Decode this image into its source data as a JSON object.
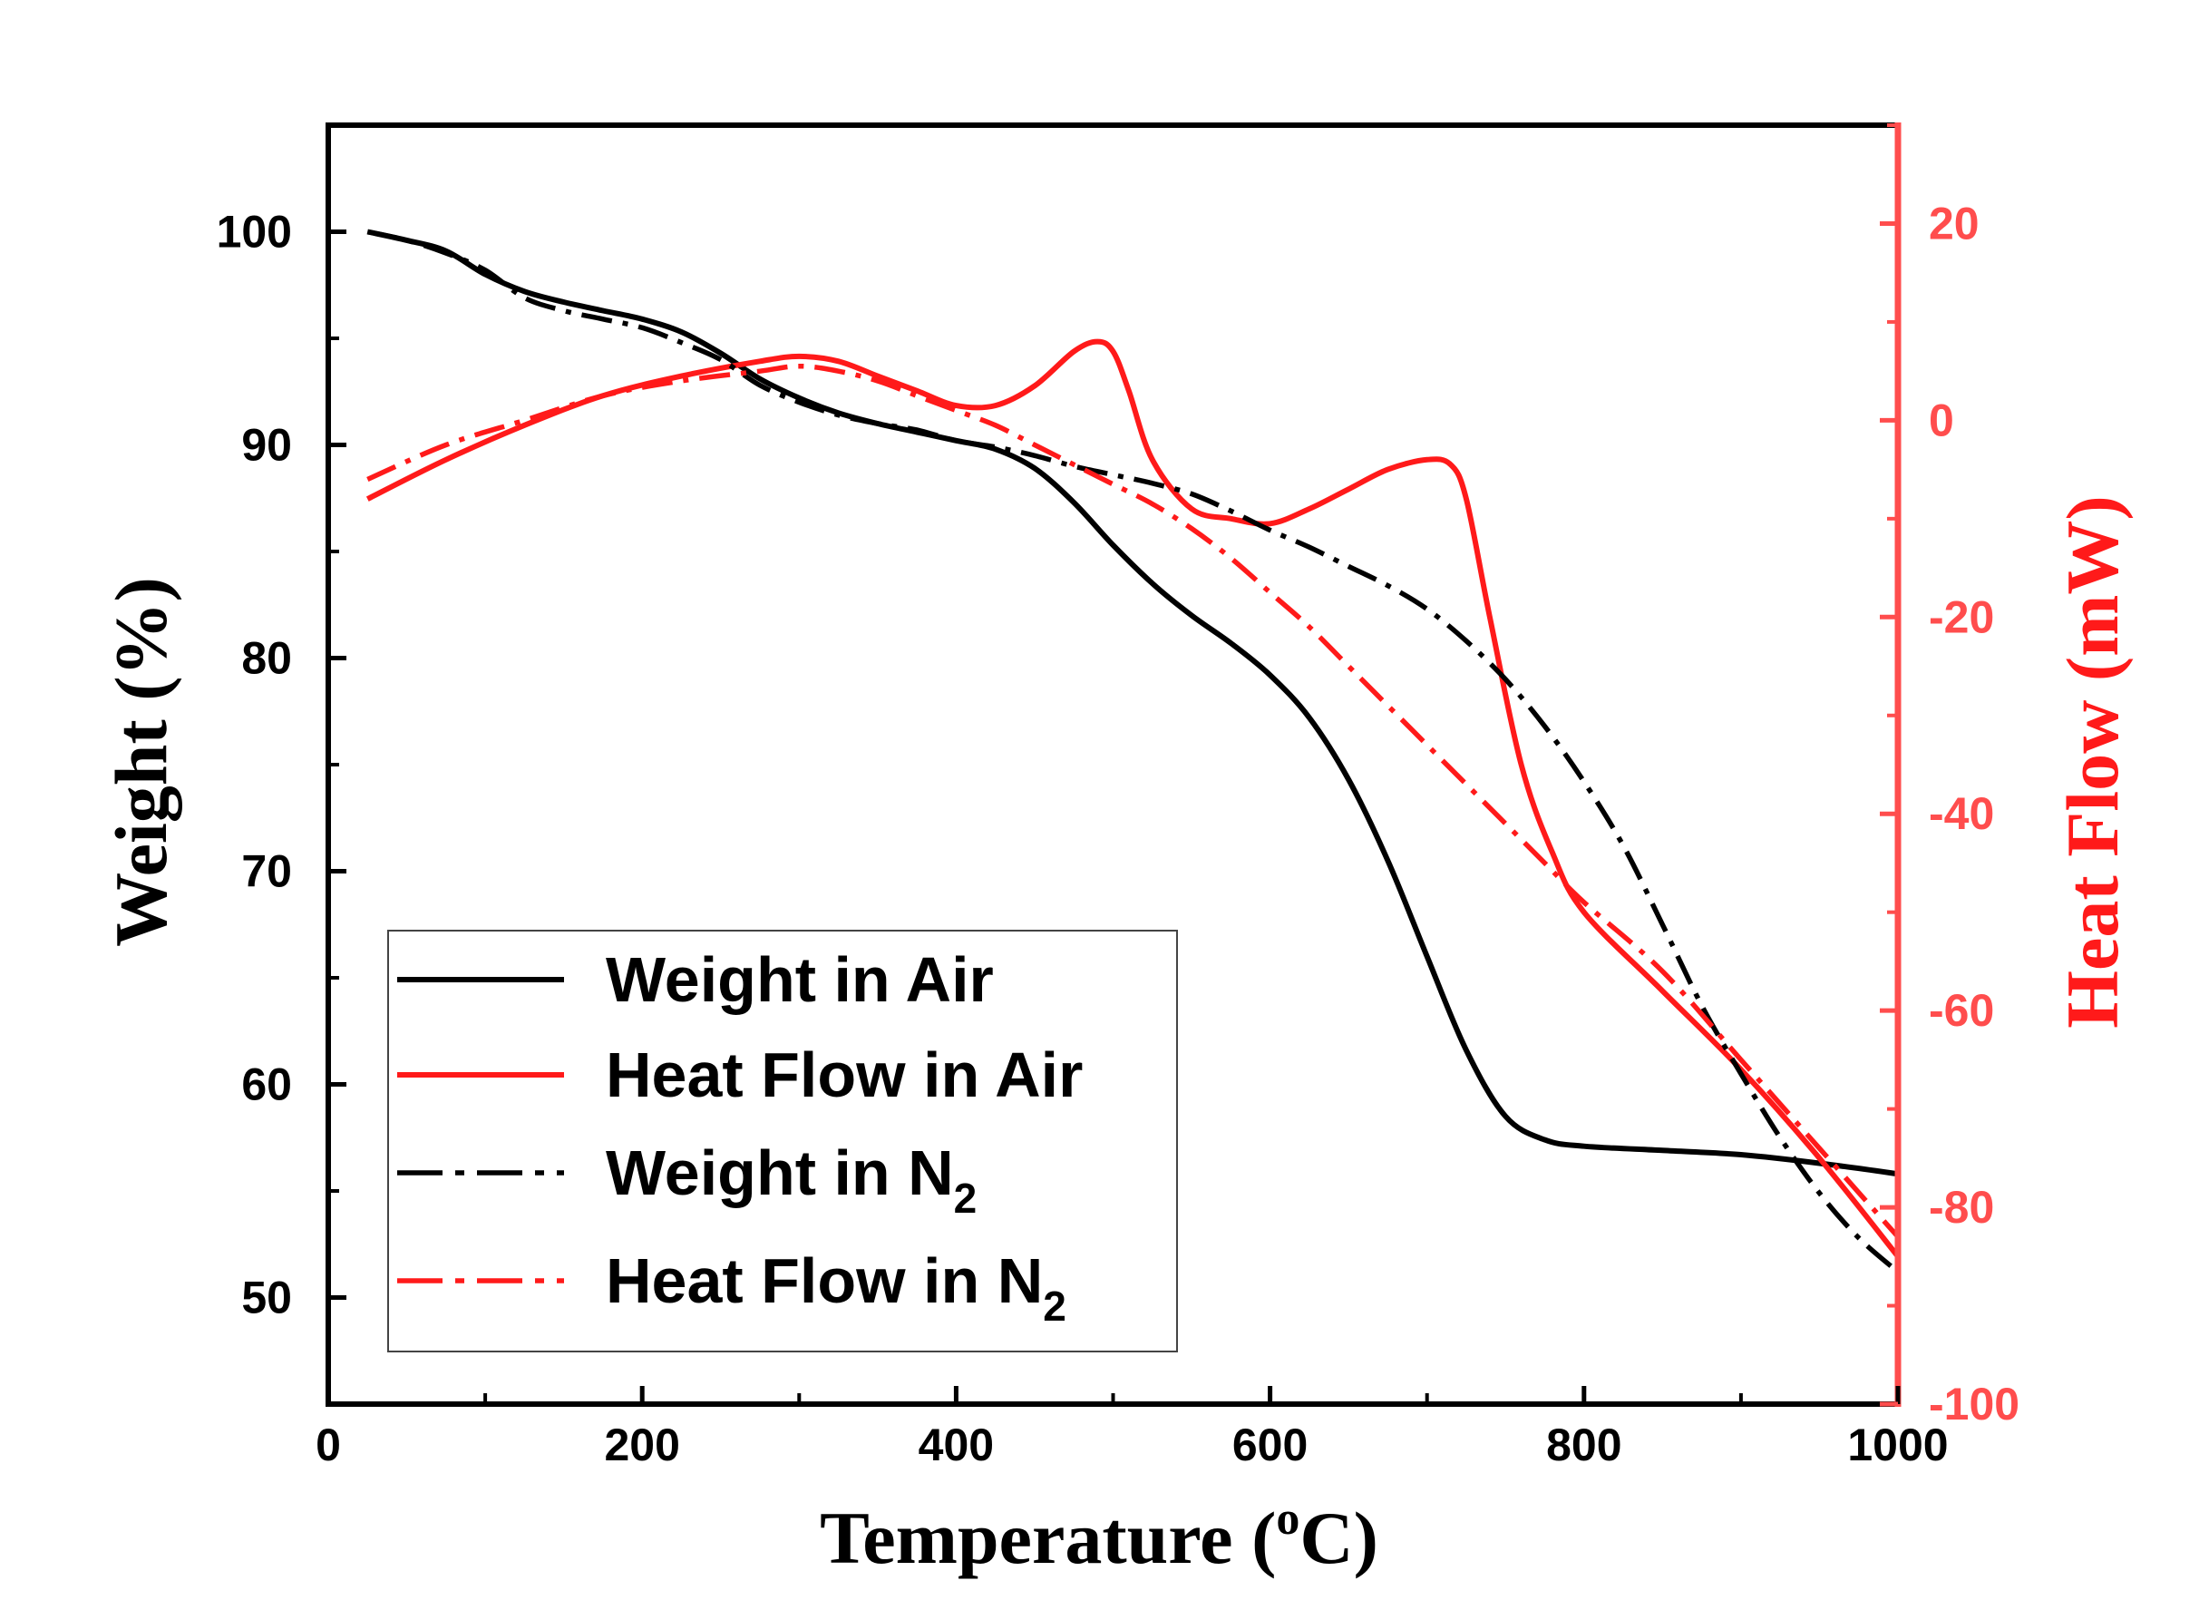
{
  "colors": {
    "black": "#000000",
    "red": "#ff1a1a",
    "right_axis": "#ff4d4d"
  },
  "chart_data": {
    "type": "line",
    "title": "",
    "xlabel": "Temperature (oC)",
    "xlabel_parts": {
      "main": "Temperature (",
      "sup": "o",
      "tail": "C)"
    },
    "ylabel": "Weight (%)",
    "y2label": "Heat Flow (mW)",
    "xlim": [
      0,
      1000
    ],
    "ylim": [
      45,
      105
    ],
    "y2lim": [
      -100,
      30
    ],
    "x_ticks": [
      "0",
      "200",
      "400",
      "600",
      "800",
      "1000"
    ],
    "y_ticks": [
      "50",
      "60",
      "70",
      "80",
      "90",
      "100"
    ],
    "y2_ticks": [
      "-100",
      "-80",
      "-60",
      "-40",
      "-20",
      "0",
      "20"
    ],
    "legend_position": "bottom-left",
    "series": [
      {
        "name": "Weight in Air",
        "axis": "left",
        "style": "solid",
        "color": "#000000",
        "legend_label": "Weight in Air",
        "legend_sub": "",
        "x": [
          25,
          50,
          75,
          100,
          125,
          150,
          175,
          200,
          225,
          250,
          275,
          300,
          325,
          350,
          375,
          400,
          425,
          450,
          475,
          500,
          525,
          550,
          575,
          600,
          625,
          650,
          675,
          700,
          725,
          750,
          775,
          800,
          850,
          900,
          950,
          1000
        ],
        "y": [
          100,
          99.6,
          99.1,
          98,
          97.2,
          96.7,
          96.3,
          95.9,
          95.3,
          94.3,
          93.1,
          92.2,
          91.5,
          91,
          90.6,
          90.2,
          89.8,
          88.9,
          87.3,
          85.3,
          83.5,
          82,
          80.7,
          79.2,
          77.2,
          74.3,
          70.5,
          66,
          61.6,
          58.5,
          57.4,
          57.1,
          56.9,
          56.7,
          56.3,
          55.8
        ]
      },
      {
        "name": "Heat Flow in Air",
        "axis": "right",
        "style": "solid",
        "color": "#ff1a1a",
        "legend_label": "Heat Flow in Air",
        "legend_sub": "",
        "x": [
          25,
          75,
          125,
          175,
          225,
          275,
          300,
          325,
          350,
          375,
          400,
          425,
          450,
          475,
          490,
          500,
          510,
          525,
          550,
          575,
          600,
          625,
          650,
          675,
          700,
          715,
          725,
          740,
          760,
          780,
          800,
          850,
          900,
          950,
          1000
        ],
        "y": [
          -8,
          -4,
          -0.5,
          2.5,
          4.5,
          6,
          6.5,
          6,
          4.5,
          3,
          1.5,
          1.5,
          3.5,
          7,
          8,
          7,
          3,
          -4,
          -9,
          -10,
          -10.5,
          -9,
          -7,
          -5,
          -4,
          -4.5,
          -8,
          -20,
          -35,
          -44,
          -50,
          -58,
          -66,
          -75,
          -85
        ]
      },
      {
        "name": "Weight in N2",
        "axis": "left",
        "style": "dashdot",
        "color": "#000000",
        "legend_label": "Weight in N",
        "legend_sub": "2",
        "x": [
          25,
          50,
          75,
          100,
          125,
          150,
          175,
          200,
          225,
          250,
          275,
          300,
          325,
          350,
          375,
          400,
          425,
          450,
          475,
          500,
          525,
          550,
          575,
          600,
          625,
          650,
          675,
          700,
          725,
          750,
          775,
          800,
          825,
          850,
          875,
          900,
          925,
          950,
          975,
          1000
        ],
        "y": [
          100,
          99.6,
          99,
          98.2,
          96.9,
          96.3,
          95.9,
          95.5,
          94.8,
          94,
          92.8,
          92,
          91.4,
          91,
          90.7,
          90.2,
          89.9,
          89.5,
          89,
          88.6,
          88.2,
          87.7,
          86.9,
          86,
          85.2,
          84.3,
          83.4,
          82.3,
          80.8,
          79,
          76.8,
          74.2,
          71.2,
          67.5,
          63.7,
          60.5,
          57.5,
          54.9,
          52.8,
          51.2
        ]
      },
      {
        "name": "Heat Flow in N2",
        "axis": "right",
        "style": "dashdot",
        "color": "#ff1a1a",
        "legend_label": "Heat Flow in N",
        "legend_sub": "2",
        "x": [
          25,
          75,
          125,
          175,
          225,
          275,
          300,
          325,
          350,
          375,
          400,
          425,
          450,
          475,
          500,
          525,
          550,
          575,
          600,
          625,
          650,
          675,
          700,
          725,
          750,
          775,
          800,
          850,
          900,
          950,
          1000
        ],
        "y": [
          -6,
          -2.5,
          0,
          2.5,
          4,
          5,
          5.5,
          5,
          4,
          2.5,
          1,
          -0.5,
          -2.5,
          -4.5,
          -6.5,
          -8.5,
          -11,
          -14,
          -17.5,
          -21,
          -25,
          -29,
          -33,
          -37,
          -41,
          -45,
          -49,
          -56,
          -65,
          -74,
          -83
        ]
      }
    ]
  }
}
